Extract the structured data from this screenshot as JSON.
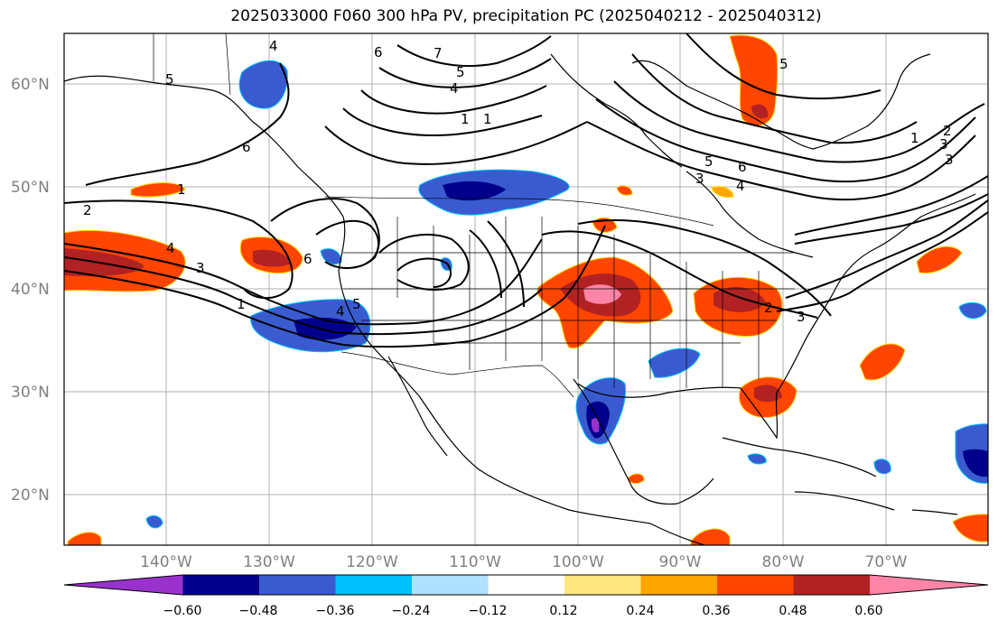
{
  "title": "2025033000 F060 300 hPa PV, precipitation PC (2025040212 - 2025040312)",
  "lat_labels": [
    "60°N",
    "50°N",
    "40°N",
    "30°N",
    "20°N"
  ],
  "lon_labels": [
    "140°W",
    "130°W",
    "120°W",
    "110°W",
    "100°W",
    "90°W",
    "80°W",
    "70°W"
  ],
  "colorbar": {
    "ticks": [
      "−0.60",
      "−0.48",
      "−0.36",
      "−0.24",
      "−0.12",
      "0.12",
      "0.24",
      "0.36",
      "0.48",
      "0.60"
    ],
    "colors": [
      "#9932cc",
      "#00008b",
      "#3a5bcf",
      "#00bfff",
      "#b0e0ff",
      "#ffffff",
      "#ffe680",
      "#ffa500",
      "#ff4500",
      "#b22222",
      "#ff85a8"
    ]
  },
  "contour_labels": [
    "1",
    "2",
    "3",
    "4",
    "5",
    "6",
    "7",
    "1",
    "1",
    "4",
    "5",
    "6",
    "3",
    "4",
    "5",
    "6",
    "1",
    "2",
    "3",
    "4",
    "5",
    "1",
    "3",
    "4",
    "5",
    "6",
    "2",
    "3"
  ]
}
